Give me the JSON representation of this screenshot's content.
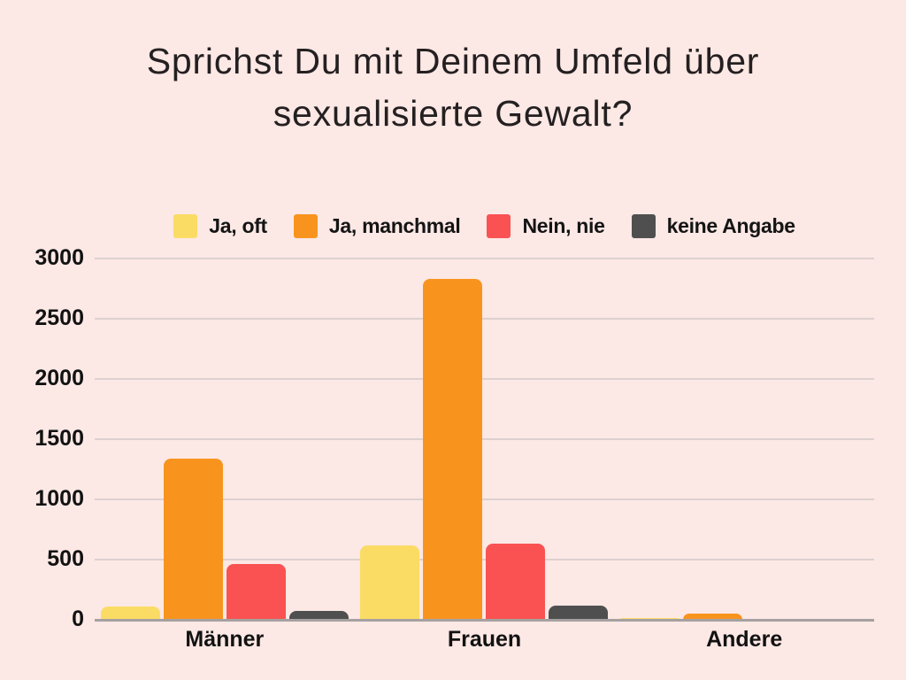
{
  "title": "Sprichst Du mit Deinem Umfeld über sexualisierte Gewalt?",
  "title_lines": {
    "line1": "Sprichst Du mit Deinem Umfeld über",
    "line2": "sexualisierte Gewalt?"
  },
  "colors": {
    "background": "#fce8e5",
    "title_text": "#242021",
    "label_text": "#121212",
    "gridline": "#ddd1d0",
    "axis_line": "#a7a1a1"
  },
  "chart_data": {
    "type": "bar",
    "title": "Sprichst Du mit Deinem Umfeld über sexualisierte Gewalt?",
    "categories": [
      "Männer",
      "Frauen",
      "Andere"
    ],
    "series": [
      {
        "name": "Ja, oft",
        "color": "#fadc64",
        "values": [
          110,
          620,
          15
        ]
      },
      {
        "name": "Ja, manchmal",
        "color": "#f8941e",
        "values": [
          1340,
          2830,
          50
        ]
      },
      {
        "name": "Nein, nie",
        "color": "#fa5252",
        "values": [
          460,
          630,
          10
        ]
      },
      {
        "name": "keine Angabe",
        "color": "#4f4f4f",
        "values": [
          70,
          120,
          5
        ]
      }
    ],
    "ylim": [
      0,
      3000
    ],
    "yticks": [
      0,
      500,
      1000,
      1500,
      2000,
      2500,
      3000
    ],
    "grid": true,
    "legend_position": "top",
    "xlabel": "",
    "ylabel": ""
  }
}
